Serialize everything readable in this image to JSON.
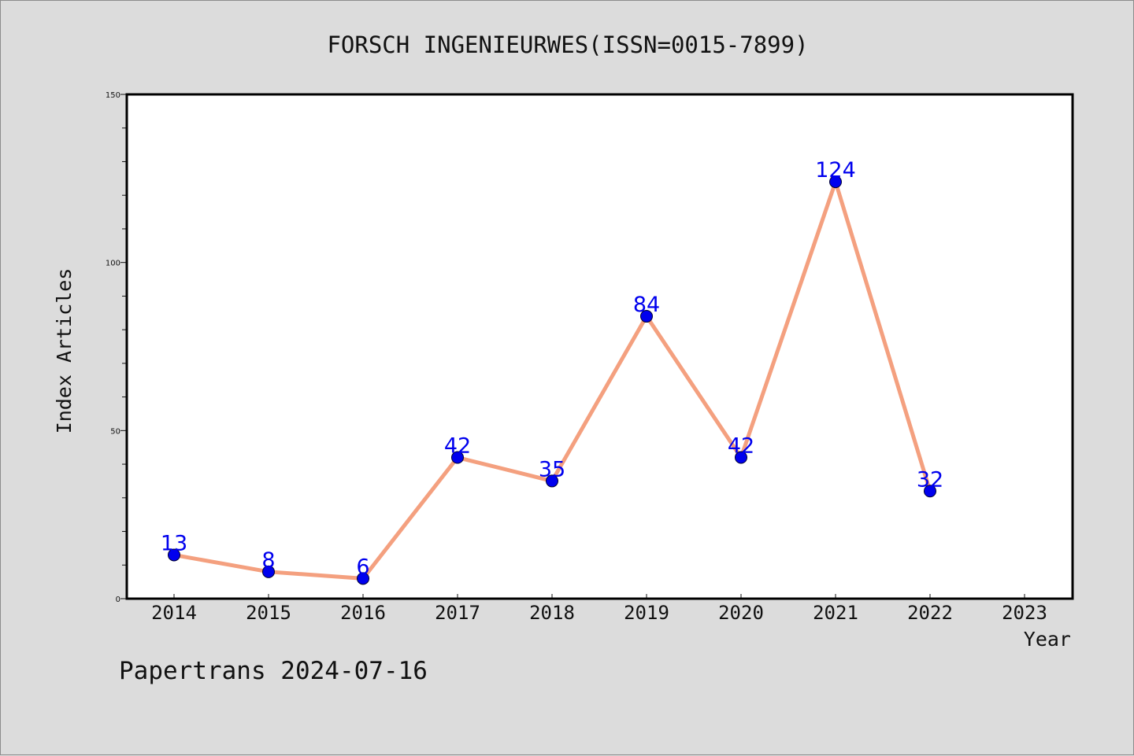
{
  "chart_data": {
    "type": "line",
    "title": "FORSCH INGENIEURWES(ISSN=0015-7899)",
    "xlabel": "Year",
    "ylabel": "Index Articles",
    "categories": [
      "2014",
      "2015",
      "2016",
      "2017",
      "2018",
      "2019",
      "2020",
      "2021",
      "2022",
      "2023"
    ],
    "series": [
      {
        "values": [
          13,
          8,
          6,
          42,
          35,
          84,
          42,
          124,
          32,
          null
        ],
        "labels": [
          "13",
          "8",
          "6",
          "42",
          "35",
          "84",
          "42",
          "124",
          "32",
          ""
        ]
      }
    ],
    "ylim": [
      0,
      150
    ],
    "yticks": [
      "0",
      "50",
      "100",
      "150"
    ],
    "grid": false,
    "colors": {
      "line": "#f4a07f",
      "marker": "#0000ee",
      "label": "#0000ee",
      "plot_background": "#ffffff",
      "figure_background": "#dcdcdc"
    }
  },
  "footer": {
    "text": "Papertrans 2024-07-16"
  }
}
